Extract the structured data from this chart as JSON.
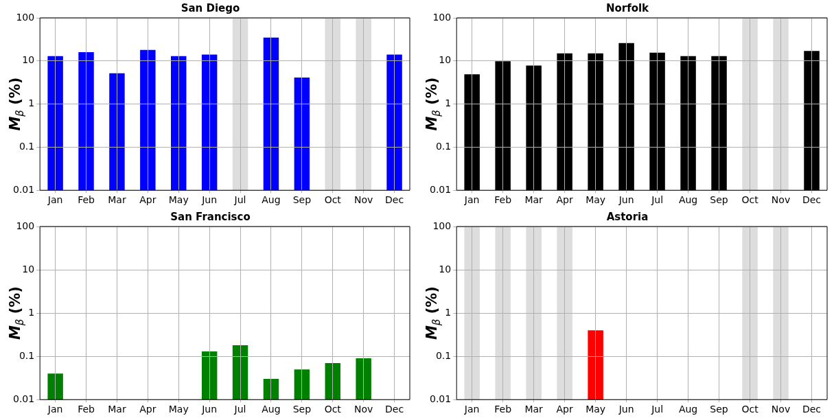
{
  "chart_data": [
    {
      "type": "bar",
      "title": "San Diego",
      "ylabel": "M$_{β}$ (%)",
      "categories": [
        "Jan",
        "Feb",
        "Mar",
        "Apr",
        "May",
        "Jun",
        "Jul",
        "Aug",
        "Sep",
        "Oct",
        "Nov",
        "Dec"
      ],
      "log": true,
      "grid": true,
      "ylim": [
        0.01,
        100
      ],
      "yticks": [
        0.01,
        0.1,
        1,
        10,
        100
      ],
      "series": [
        {
          "color": "#dddddd",
          "values": [
            null,
            null,
            null,
            null,
            null,
            null,
            100,
            null,
            null,
            100,
            100,
            null
          ]
        },
        {
          "color": "#0000ff",
          "values": [
            13,
            16,
            5.2,
            18,
            13,
            14,
            null,
            35,
            4.1,
            null,
            null,
            14
          ]
        }
      ]
    },
    {
      "type": "bar",
      "title": "Norfolk",
      "ylabel": "M$_{β}$ (%)",
      "categories": [
        "Jan",
        "Feb",
        "Mar",
        "Apr",
        "May",
        "Jun",
        "Jul",
        "Aug",
        "Sep",
        "Oct",
        "Nov",
        "Dec"
      ],
      "log": true,
      "grid": true,
      "ylim": [
        0.01,
        100
      ],
      "yticks": [
        0.01,
        0.1,
        1,
        10,
        100
      ],
      "series": [
        {
          "color": "#dddddd",
          "values": [
            null,
            null,
            null,
            null,
            null,
            null,
            null,
            null,
            null,
            100,
            100,
            null
          ]
        },
        {
          "color": "#000000",
          "values": [
            4.9,
            9.8,
            7.8,
            15,
            15,
            26,
            15.5,
            13,
            13,
            null,
            null,
            17
          ]
        }
      ]
    },
    {
      "type": "bar",
      "title": "San Francisco",
      "ylabel": "M$_{β}$ (%)",
      "categories": [
        "Jan",
        "Feb",
        "Mar",
        "Apr",
        "May",
        "Jun",
        "Jul",
        "Aug",
        "Sep",
        "Oct",
        "Nov",
        "Dec"
      ],
      "log": true,
      "grid": true,
      "ylim": [
        0.01,
        100
      ],
      "yticks": [
        0.01,
        0.1,
        1,
        10,
        100
      ],
      "series": [
        {
          "color": "#008000",
          "values": [
            0.04,
            null,
            null,
            null,
            null,
            0.13,
            0.18,
            0.03,
            0.05,
            0.07,
            0.09,
            null
          ]
        }
      ]
    },
    {
      "type": "bar",
      "title": "Astoria",
      "ylabel": "M$_{β}$ (%)",
      "categories": [
        "Jan",
        "Feb",
        "Mar",
        "Apr",
        "May",
        "Jun",
        "Jul",
        "Aug",
        "Sep",
        "Oct",
        "Nov",
        "Dec"
      ],
      "log": true,
      "grid": true,
      "ylim": [
        0.01,
        100
      ],
      "yticks": [
        0.01,
        0.1,
        1,
        10,
        100
      ],
      "series": [
        {
          "color": "#dddddd",
          "values": [
            100,
            100,
            100,
            100,
            null,
            null,
            null,
            null,
            null,
            100,
            100,
            null
          ]
        },
        {
          "color": "#ff0000",
          "values": [
            null,
            null,
            null,
            null,
            0.4,
            null,
            null,
            null,
            null,
            null,
            null,
            null
          ]
        }
      ]
    }
  ]
}
